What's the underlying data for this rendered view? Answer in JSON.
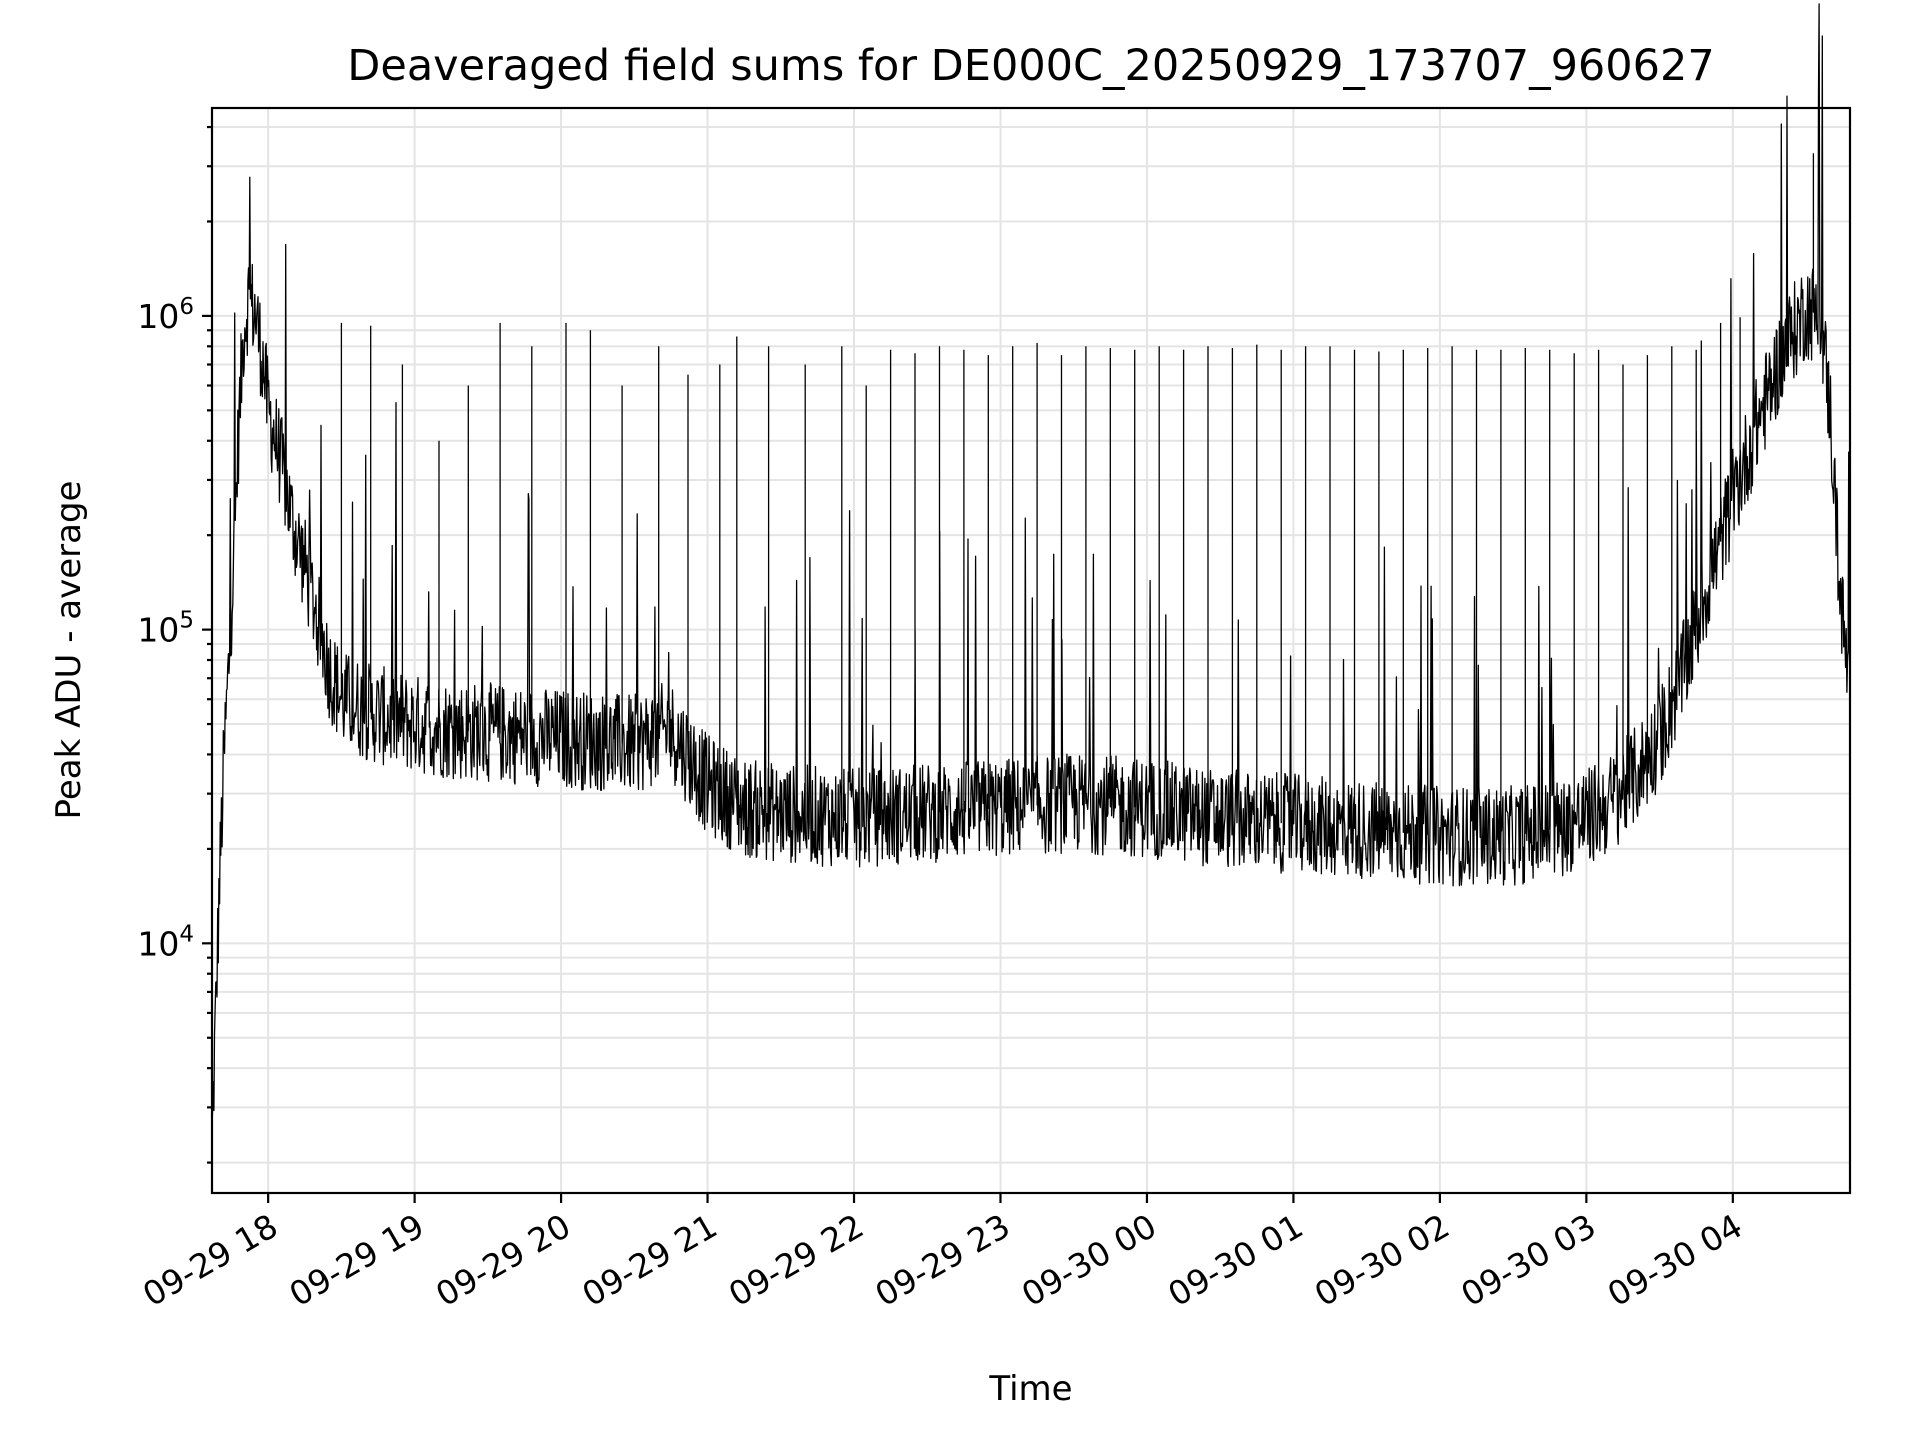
{
  "chart_data": {
    "type": "line",
    "title": "Deaveraged field sums for DE000C_20250929_173707_960627",
    "xlabel": "Time",
    "ylabel": "Peak ADU - average",
    "y_scale": "log",
    "xlim": [
      "2025-09-29 17:37",
      "2025-09-30 04:48"
    ],
    "ylim": [
      1600,
      4600000
    ],
    "grid": "major and minor",
    "line_color": "#000000",
    "x_ticks": [
      {
        "time": "2025-09-29 18:00",
        "label": "09-29 18"
      },
      {
        "time": "2025-09-29 19:00",
        "label": "09-29 19"
      },
      {
        "time": "2025-09-29 20:00",
        "label": "09-29 20"
      },
      {
        "time": "2025-09-29 21:00",
        "label": "09-29 21"
      },
      {
        "time": "2025-09-29 22:00",
        "label": "09-29 22"
      },
      {
        "time": "2025-09-29 23:00",
        "label": "09-29 23"
      },
      {
        "time": "2025-09-30 00:00",
        "label": "09-30 00"
      },
      {
        "time": "2025-09-30 01:00",
        "label": "09-30 01"
      },
      {
        "time": "2025-09-30 02:00",
        "label": "09-30 02"
      },
      {
        "time": "2025-09-30 03:00",
        "label": "09-30 03"
      },
      {
        "time": "2025-09-30 04:00",
        "label": "09-30 04"
      }
    ],
    "y_ticks": [
      {
        "value": 10000,
        "base": "10",
        "exp": "4"
      },
      {
        "value": 100000,
        "base": "10",
        "exp": "5"
      },
      {
        "value": 1000000,
        "base": "10",
        "exp": "6"
      }
    ],
    "series": [
      {
        "x": [
          "2025-09-29 17:37",
          "2025-09-29 17:40",
          "2025-09-29 17:42",
          "2025-09-29 17:44",
          "2025-09-29 17:46",
          "2025-09-29 17:48",
          "2025-09-29 17:50",
          "2025-09-29 17:52",
          "2025-09-29 17:55",
          "2025-09-29 17:58",
          "2025-09-29 18:00",
          "2025-09-29 18:05",
          "2025-09-29 18:10",
          "2025-09-29 18:15",
          "2025-09-29 18:20",
          "2025-09-29 18:25",
          "2025-09-29 18:30",
          "2025-09-29 18:40",
          "2025-09-29 18:50",
          "2025-09-29 19:00",
          "2025-09-29 19:15",
          "2025-09-29 19:30",
          "2025-09-29 19:45",
          "2025-09-29 20:00",
          "2025-09-29 20:15",
          "2025-09-29 20:30",
          "2025-09-29 20:45",
          "2025-09-29 21:00",
          "2025-09-29 21:15",
          "2025-09-29 21:30",
          "2025-09-29 22:00",
          "2025-09-29 22:30",
          "2025-09-29 23:00",
          "2025-09-29 23:30",
          "2025-09-30 00:00",
          "2025-09-30 00:30",
          "2025-09-30 01:00",
          "2025-09-30 01:30",
          "2025-09-30 02:00",
          "2025-09-30 02:30",
          "2025-09-30 02:45",
          "2025-09-30 03:00",
          "2025-09-30 03:10",
          "2025-09-30 03:20",
          "2025-09-30 03:30",
          "2025-09-30 03:40",
          "2025-09-30 03:50",
          "2025-09-30 04:00",
          "2025-09-30 04:10",
          "2025-09-30 04:20",
          "2025-09-30 04:30",
          "2025-09-30 04:36",
          "2025-09-30 04:40",
          "2025-09-30 04:44",
          "2025-09-30 04:48"
        ],
        "y": [
          2300,
          15000,
          40000,
          80000,
          180000,
          450000,
          900000,
          1150000,
          1000000,
          700000,
          500000,
          350000,
          220000,
          160000,
          110000,
          75000,
          60000,
          55000,
          52000,
          50000,
          48000,
          47000,
          46000,
          45000,
          44000,
          43000,
          48000,
          32000,
          27000,
          26000,
          25000,
          26000,
          27000,
          28000,
          27000,
          25000,
          24000,
          23000,
          22000,
          22000,
          23000,
          25000,
          28000,
          34000,
          45000,
          75000,
          140000,
          260000,
          450000,
          750000,
          1050000,
          1000000,
          480000,
          130000,
          60000
        ]
      }
    ],
    "spikes": {
      "x": [
        "2025-09-29 18:30",
        "2025-09-29 18:42",
        "2025-09-29 18:55",
        "2025-09-29 19:10",
        "2025-09-29 19:22",
        "2025-09-29 19:35",
        "2025-09-29 19:48",
        "2025-09-29 20:02",
        "2025-09-29 20:12",
        "2025-09-29 20:25",
        "2025-09-29 20:40",
        "2025-09-29 20:52",
        "2025-09-29 21:05",
        "2025-09-29 21:12",
        "2025-09-29 21:25",
        "2025-09-29 21:40",
        "2025-09-29 21:55",
        "2025-09-29 22:05",
        "2025-09-29 22:15",
        "2025-09-29 22:25",
        "2025-09-29 22:35",
        "2025-09-29 22:45",
        "2025-09-29 22:55",
        "2025-09-29 23:05",
        "2025-09-29 23:15",
        "2025-09-29 23:25",
        "2025-09-29 23:35",
        "2025-09-29 23:45",
        "2025-09-29 23:55",
        "2025-09-30 00:05",
        "2025-09-30 00:15",
        "2025-09-30 00:25",
        "2025-09-30 00:35",
        "2025-09-30 00:45",
        "2025-09-30 00:55",
        "2025-09-30 01:05",
        "2025-09-30 01:15",
        "2025-09-30 01:25",
        "2025-09-30 01:35",
        "2025-09-30 01:45",
        "2025-09-30 01:55",
        "2025-09-30 02:05",
        "2025-09-30 02:15",
        "2025-09-30 02:25",
        "2025-09-30 02:35",
        "2025-09-30 02:45",
        "2025-09-30 02:55",
        "2025-09-30 03:05",
        "2025-09-30 03:15",
        "2025-09-30 03:25",
        "2025-09-30 03:35",
        "2025-09-30 03:45",
        "2025-09-30 03:55",
        "2025-09-30 04:03",
        "2025-09-30 04:33"
      ],
      "y": [
        950000,
        930000,
        700000,
        400000,
        600000,
        950000,
        800000,
        950000,
        900000,
        600000,
        800000,
        650000,
        700000,
        860000,
        800000,
        700000,
        800000,
        600000,
        780000,
        760000,
        800000,
        780000,
        750000,
        800000,
        820000,
        750000,
        800000,
        790000,
        780000,
        800000,
        780000,
        800000,
        790000,
        810000,
        780000,
        800000,
        800000,
        780000,
        770000,
        780000,
        790000,
        800000,
        780000,
        780000,
        790000,
        780000,
        760000,
        780000,
        700000,
        750000,
        800000,
        780000,
        950000,
        990000,
        3300000
      ]
    }
  }
}
